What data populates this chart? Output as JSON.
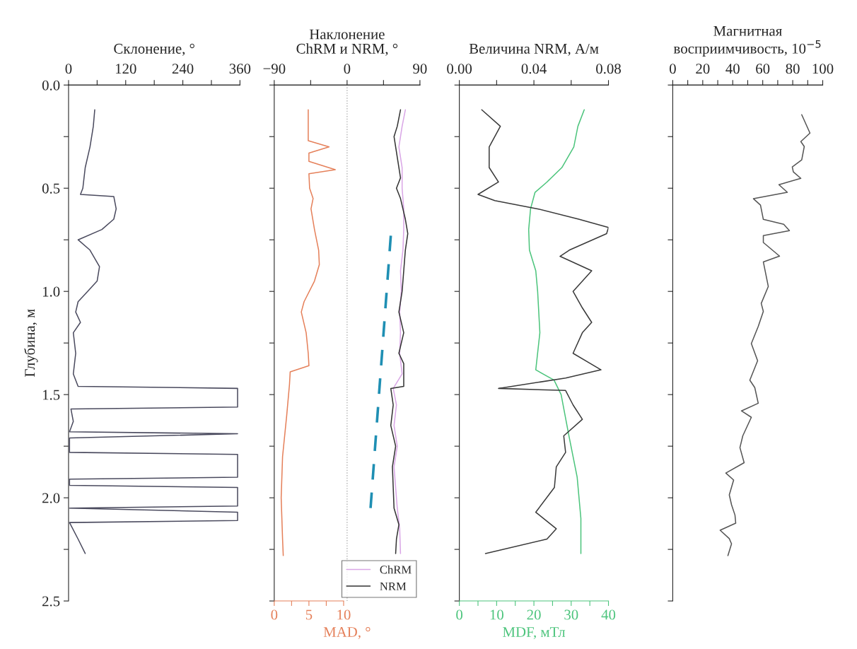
{
  "chart_data": [
    {
      "type": "line",
      "orientation": "horizontal",
      "ylabel": "Глубина, м",
      "x2label": "Склонение, °",
      "ylim": [
        2.5,
        0
      ],
      "yticks": [
        {
          "value": 0,
          "label": "0.0"
        },
        {
          "value": 0.25,
          "label": null
        },
        {
          "value": 0.5,
          "label": "0.5"
        },
        {
          "value": 0.75,
          "label": null
        },
        {
          "value": 1.0,
          "label": "1.0"
        },
        {
          "value": 1.25,
          "label": null
        },
        {
          "value": 1.5,
          "label": "1.5"
        },
        {
          "value": 1.75,
          "label": null
        },
        {
          "value": 2.0,
          "label": "2.0"
        },
        {
          "value": 2.25,
          "label": null
        },
        {
          "value": 2.5,
          "label": "2.5"
        }
      ],
      "x2lim": [
        0,
        360
      ],
      "x2ticks": [
        0,
        {
          "value": 60,
          "label": null
        },
        120,
        {
          "value": 180,
          "label": null
        },
        240,
        {
          "value": 300,
          "label": null
        },
        360
      ],
      "series": [
        {
          "axis": "x2",
          "color": "#4a4a5e",
          "x": [
            0.12,
            0.2,
            0.3,
            0.4,
            0.5,
            0.53,
            0.54,
            0.6,
            0.65,
            0.7,
            0.75,
            0.8,
            0.88,
            0.95,
            1.0,
            1.05,
            1.1,
            1.15,
            1.2,
            1.3,
            1.4,
            1.46,
            1.47,
            1.56,
            1.57,
            1.63,
            1.68,
            1.69,
            1.71,
            1.78,
            1.79,
            1.9,
            1.91,
            1.94,
            1.95,
            2.04,
            2.05,
            2.07,
            2.11,
            2.12,
            2.2,
            2.27
          ],
          "values": [
            55,
            52,
            45,
            35,
            30,
            25,
            95,
            100,
            95,
            70,
            20,
            45,
            65,
            60,
            40,
            20,
            15,
            25,
            10,
            15,
            10,
            20,
            355,
            355,
            5,
            10,
            2,
            355,
            2,
            2,
            355,
            355,
            2,
            2,
            355,
            355,
            2,
            355,
            355,
            2,
            20,
            35
          ]
        }
      ]
    },
    {
      "type": "line",
      "orientation": "horizontal",
      "x2label": "Наклонение\nChRM и NRM, °",
      "xlabel": "MAD, °",
      "ylim": [
        2.5,
        0
      ],
      "tick_labels": "x",
      "legend": "bottom right",
      "yticks": [
        {
          "value": 0,
          "label": null
        },
        {
          "value": 0.25,
          "label": null
        },
        {
          "value": 0.5,
          "label": null
        },
        {
          "value": 0.75,
          "label": null
        },
        {
          "value": 1.0,
          "label": null
        },
        {
          "value": 1.25,
          "label": null
        },
        {
          "value": 1.5,
          "label": null
        },
        {
          "value": 1.75,
          "label": null
        },
        {
          "value": 2.0,
          "label": null
        },
        {
          "value": 2.25,
          "label": null
        },
        {
          "value": 2.5,
          "label": null
        }
      ],
      "x2lim": [
        -90,
        90
      ],
      "x2ticks": [
        {
          "value": -90,
          "label": "−90"
        },
        {
          "value": -45,
          "label": null
        },
        0,
        {
          "value": 45,
          "label": null
        },
        90
      ],
      "xlim": [
        0,
        21
      ],
      "xticks": [
        0,
        {
          "value": 2.5,
          "label": null
        },
        5,
        {
          "value": 7.5,
          "label": null
        },
        10
      ],
      "ref_lines": [
        {
          "axis": "x2",
          "value": 0,
          "color": "#b0b0b0",
          "line_style": "dotted"
        }
      ],
      "series": [
        {
          "color": "#e5805a",
          "x": [
            0.12,
            0.27,
            0.3,
            0.33,
            0.37,
            0.41,
            0.43,
            0.5,
            0.55,
            0.6,
            0.7,
            0.8,
            0.87,
            0.95,
            1.05,
            1.1,
            1.2,
            1.3,
            1.36,
            1.39,
            1.45,
            1.6,
            1.8,
            2.0,
            2.2,
            2.28
          ],
          "values": [
            4.9,
            4.9,
            7.9,
            5.0,
            5.0,
            8.8,
            5.0,
            5.1,
            5.6,
            5.3,
            5.8,
            6.4,
            6.5,
            5.8,
            4.3,
            3.9,
            4.6,
            4.9,
            5.0,
            2.3,
            2.2,
            1.8,
            1.2,
            1.0,
            1.2,
            1.3
          ]
        },
        {
          "axis": "x2",
          "name": "ChRM",
          "color": "#d9a6e6",
          "x": [
            0.12,
            0.2,
            0.3,
            0.4,
            0.5,
            0.6,
            0.7,
            0.8,
            0.9,
            1.0,
            1.1,
            1.2,
            1.3,
            1.4,
            1.47,
            1.55,
            1.65,
            1.75,
            1.85,
            1.95,
            2.05,
            2.15,
            2.27
          ],
          "values": [
            72,
            68,
            64,
            68,
            68,
            70,
            70,
            69,
            66,
            67,
            65,
            66,
            65,
            68,
            57,
            61,
            58,
            62,
            58,
            60,
            62,
            65,
            66
          ]
        },
        {
          "axis": "x2",
          "name": "NRM",
          "color": "#333333",
          "x": [
            0.12,
            0.2,
            0.25,
            0.35,
            0.45,
            0.5,
            0.55,
            0.65,
            0.72,
            0.8,
            0.9,
            1.0,
            1.1,
            1.2,
            1.3,
            1.35,
            1.46,
            1.47,
            1.55,
            1.65,
            1.75,
            1.85,
            1.95,
            2.05,
            2.13,
            2.2,
            2.27
          ],
          "values": [
            66,
            62,
            58,
            62,
            66,
            61,
            66,
            72,
            75,
            72,
            70,
            68,
            64,
            70,
            64,
            70,
            70,
            54,
            57,
            54,
            60,
            56,
            57,
            58,
            64,
            61,
            60
          ]
        },
        {
          "axis": "x2",
          "color": "#1f8fb3",
          "line_style": "dashed",
          "x": [
            0.73,
            2.05
          ],
          "values": [
            54,
            29
          ]
        }
      ]
    },
    {
      "type": "line",
      "orientation": "horizontal",
      "x2label": "Величина NRM, А/м",
      "xlabel": "MDF, мТл",
      "ylim": [
        2.5,
        0
      ],
      "tick_labels": "x",
      "yticks": [
        {
          "value": 0,
          "label": null
        },
        {
          "value": 0.25,
          "label": null
        },
        {
          "value": 0.5,
          "label": null
        },
        {
          "value": 0.75,
          "label": null
        },
        {
          "value": 1.0,
          "label": null
        },
        {
          "value": 1.25,
          "label": null
        },
        {
          "value": 1.5,
          "label": null
        },
        {
          "value": 1.75,
          "label": null
        },
        {
          "value": 2.0,
          "label": null
        },
        {
          "value": 2.25,
          "label": null
        },
        {
          "value": 2.5,
          "label": null
        }
      ],
      "x2lim": [
        0,
        0.08
      ],
      "x2ticks": [
        {
          "value": 0,
          "label": "0.00"
        },
        {
          "value": 0.02,
          "label": null
        },
        {
          "value": 0.04,
          "label": "0.04"
        },
        {
          "value": 0.06,
          "label": null
        },
        {
          "value": 0.08,
          "label": "0.08"
        }
      ],
      "xlim": [
        0,
        40
      ],
      "xticks": [
        0,
        {
          "value": 5,
          "label": null
        },
        10,
        {
          "value": 15,
          "label": null
        },
        20,
        {
          "value": 25,
          "label": null
        },
        30,
        {
          "value": 35,
          "label": null
        },
        40
      ],
      "series": [
        {
          "axis": "x2",
          "color": "#3a3a3a",
          "x": [
            0.12,
            0.2,
            0.3,
            0.4,
            0.47,
            0.53,
            0.56,
            0.6,
            0.65,
            0.69,
            0.72,
            0.8,
            0.83,
            0.9,
            1.0,
            1.08,
            1.15,
            1.2,
            1.3,
            1.38,
            1.42,
            1.47,
            1.48,
            1.55,
            1.62,
            1.7,
            1.78,
            1.85,
            1.95,
            2.07,
            2.15,
            2.2,
            2.27
          ],
          "values": [
            0.012,
            0.022,
            0.016,
            0.016,
            0.021,
            0.01,
            0.019,
            0.042,
            0.064,
            0.08,
            0.079,
            0.059,
            0.054,
            0.071,
            0.061,
            0.066,
            0.071,
            0.066,
            0.061,
            0.076,
            0.057,
            0.021,
            0.057,
            0.061,
            0.066,
            0.056,
            0.057,
            0.052,
            0.051,
            0.041,
            0.052,
            0.047,
            0.014
          ]
        },
        {
          "color": "#4cc47c",
          "x": [
            0.12,
            0.2,
            0.3,
            0.4,
            0.47,
            0.52,
            0.6,
            0.7,
            0.8,
            0.9,
            1.0,
            1.2,
            1.38,
            1.43,
            1.5,
            1.7,
            1.9,
            2.1,
            2.27
          ],
          "values": [
            33.5,
            31.8,
            30.7,
            27.5,
            23.5,
            20.3,
            19.1,
            18.6,
            18.8,
            20.5,
            21.0,
            21.6,
            20.5,
            25.4,
            27.3,
            29.4,
            31.6,
            32.6,
            32.6
          ]
        }
      ]
    },
    {
      "type": "line",
      "orientation": "horizontal",
      "x2label": "Магнитная\nвосприимчивость, 10$^{−5}$",
      "ylim": [
        2.5,
        0
      ],
      "tick_labels": "x",
      "yticks": [
        {
          "value": 0,
          "label": null
        },
        {
          "value": 0.25,
          "label": null
        },
        {
          "value": 0.5,
          "label": null
        },
        {
          "value": 0.75,
          "label": null
        },
        {
          "value": 1.0,
          "label": null
        },
        {
          "value": 1.25,
          "label": null
        },
        {
          "value": 1.5,
          "label": null
        },
        {
          "value": 1.75,
          "label": null
        },
        {
          "value": 2.0,
          "label": null
        },
        {
          "value": 2.25,
          "label": null
        },
        {
          "value": 2.5,
          "label": null
        }
      ],
      "x2lim": [
        0,
        100
      ],
      "x2ticks": [
        0,
        {
          "value": 10,
          "label": null
        },
        20,
        {
          "value": 30,
          "label": null
        },
        40,
        {
          "value": 50,
          "label": null
        },
        60,
        {
          "value": 70,
          "label": null
        },
        80,
        {
          "value": 90,
          "label": null
        },
        100
      ],
      "series": [
        {
          "axis": "x2",
          "color": "#555555",
          "x": [
            0.144,
            0.233,
            0.274,
            0.298,
            0.363,
            0.397,
            0.421,
            0.452,
            0.483,
            0.52,
            0.551,
            0.582,
            0.651,
            0.675,
            0.706,
            0.73,
            0.763,
            0.829,
            0.857,
            0.976,
            1.058,
            1.097,
            1.17,
            1.253,
            1.336,
            1.43,
            1.466,
            1.542,
            1.579,
            1.61,
            1.7,
            1.757,
            1.83,
            1.88,
            1.914,
            1.986,
            2.034,
            2.084,
            2.123,
            2.157,
            2.198,
            2.223,
            2.28
          ],
          "values": [
            86,
            91.5,
            85.4,
            87.7,
            86,
            79.7,
            80.4,
            85.4,
            70.8,
            76.4,
            53.8,
            58.5,
            60.4,
            74,
            77.8,
            60.4,
            60.4,
            71.2,
            60.4,
            63.7,
            59,
            60.4,
            57,
            52.4,
            56.6,
            51.4,
            54.7,
            57,
            45.8,
            52.4,
            46.7,
            44.8,
            47.6,
            35.4,
            40.6,
            37.7,
            39.2,
            41.5,
            42,
            31.6,
            37.7,
            39.2,
            36.8
          ]
        }
      ]
    }
  ]
}
